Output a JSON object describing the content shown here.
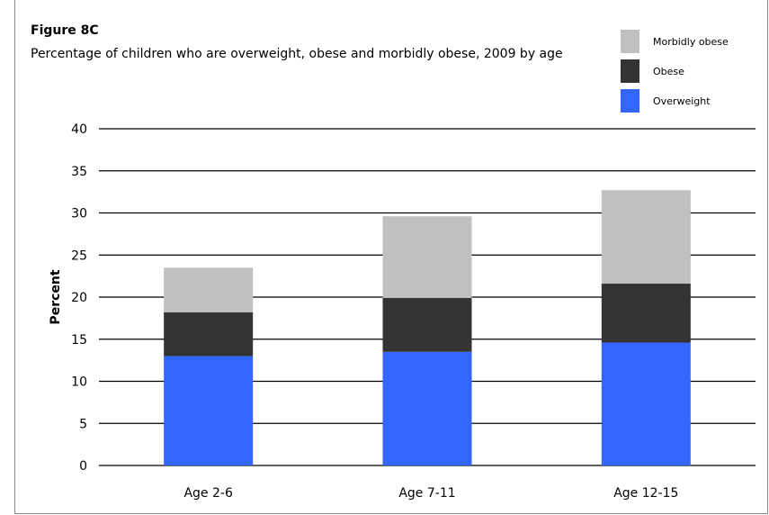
{
  "figure_label": "Figure 8C",
  "colors": {
    "overweight": "#3366ff",
    "obese": "#333333",
    "morbidly_obese": "#c0c0c0",
    "gridline": "#000000"
  },
  "chart_data": {
    "type": "bar",
    "stacked": true,
    "title": "Percentage of children who are overweight, obese and morbidly obese, 2009 by age",
    "xlabel": "",
    "ylabel": "Percent",
    "ylim": [
      0,
      40
    ],
    "yticks": [
      0,
      5,
      10,
      15,
      20,
      25,
      30,
      35,
      40
    ],
    "grid": true,
    "legend_position": "top-right",
    "categories": [
      "Age 2-6",
      "Age 7-11",
      "Age 12-15"
    ],
    "series": [
      {
        "name": "Overweight",
        "values": [
          13.0,
          13.5,
          14.6
        ]
      },
      {
        "name": "Obese",
        "values": [
          5.2,
          6.4,
          7.0
        ]
      },
      {
        "name": "Morbidly obese",
        "values": [
          5.3,
          9.7,
          11.1
        ]
      }
    ],
    "legend": [
      "Morbidly obese",
      "Obese",
      "Overweight"
    ]
  }
}
